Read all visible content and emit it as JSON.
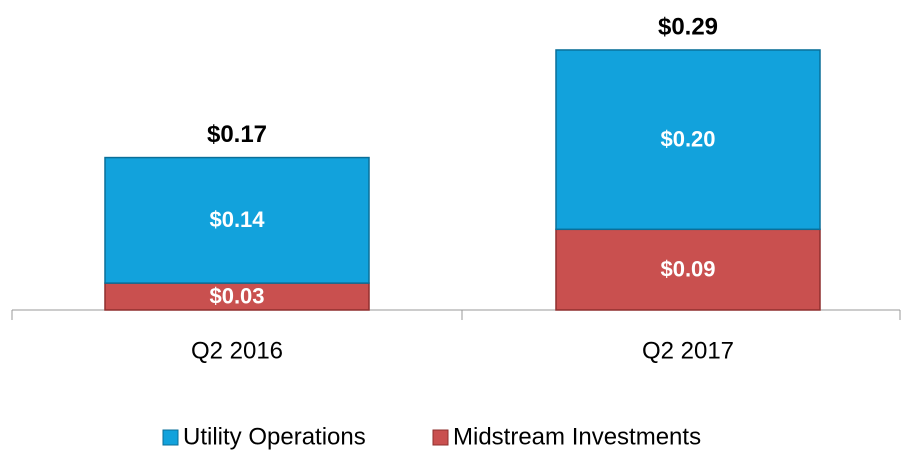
{
  "chart_data": {
    "type": "stacked_bar",
    "categories": [
      "Q2 2016",
      "Q2 2017"
    ],
    "series": [
      {
        "name": "Midstream Investments",
        "color": "#c9504f",
        "values": [
          0.03,
          0.09
        ],
        "value_labels": [
          "$0.03",
          "$0.09"
        ]
      },
      {
        "name": "Utility Operations",
        "color": "#12a2dc",
        "values": [
          0.14,
          0.2
        ],
        "value_labels": [
          "$0.14",
          "$0.20"
        ]
      }
    ],
    "totals": {
      "values": [
        0.17,
        0.29
      ],
      "value_labels": [
        "$0.17",
        "$0.29"
      ]
    },
    "ylim": [
      0,
      0.3
    ],
    "legend": "bottom"
  }
}
